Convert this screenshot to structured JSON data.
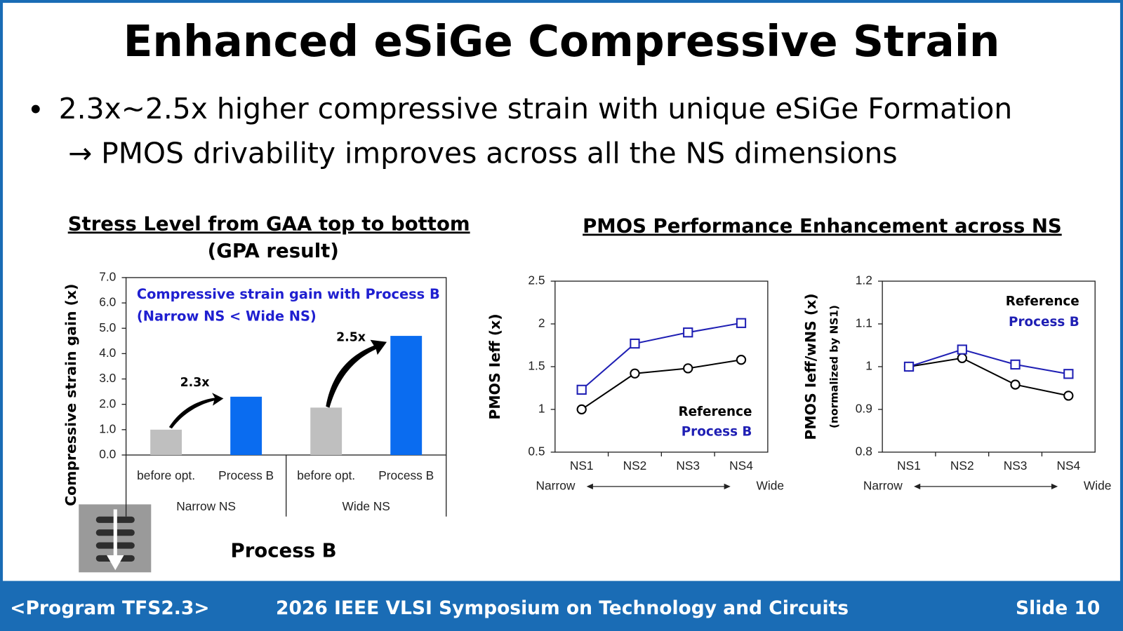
{
  "slide": {
    "title": "Enhanced eSiGe Compressive Strain",
    "bullet": "2.3x~2.5x higher compressive strain with unique eSiGe Formation",
    "sub_bullet": "→ PMOS drivability improves across all the NS dimensions",
    "right_panel_title": "PMOS Performance Enhancement across NS",
    "image_caption": "Process B"
  },
  "footer": {
    "program": "<Program TFS2.3>",
    "conference": "2026 IEEE VLSI Symposium on Technology and Circuits",
    "slide_number": "Slide 10"
  },
  "chart_data": [
    {
      "type": "bar",
      "title": "Stress Level from GAA top to bottom",
      "subtitle": "(GPA result)",
      "ylabel": "Compressive strain gain (x)",
      "categories": [
        "before opt.",
        "Process B",
        "before opt.",
        "Process B"
      ],
      "group_labels": [
        "Narrow NS",
        "Wide NS"
      ],
      "values": [
        1.0,
        2.3,
        1.87,
        4.7
      ],
      "colors": [
        "#bfbfbf",
        "#0a6cf0",
        "#bfbfbf",
        "#0a6cf0"
      ],
      "ylim": [
        0,
        7
      ],
      "yticks": [
        {
          "value": 0,
          "label": "0.0"
        },
        {
          "value": 1,
          "label": "1.0"
        },
        {
          "value": 2,
          "label": "2.0"
        },
        {
          "value": 3,
          "label": "3.0"
        },
        {
          "value": 4,
          "label": "4.0"
        },
        {
          "value": 5,
          "label": "5.0"
        },
        {
          "value": 6,
          "label": "6.0"
        },
        {
          "value": 7,
          "label": "7.0"
        }
      ],
      "annotations": [
        "Compressive strain gain with Process B",
        "(Narrow NS < Wide NS)",
        "2.3x",
        "2.5x"
      ],
      "grid": false
    },
    {
      "type": "line",
      "ylabel": "PMOS Ieff (x)",
      "categories": [
        "NS1",
        "NS2",
        "NS3",
        "NS4"
      ],
      "x_range_labels": [
        "Narrow",
        "Wide"
      ],
      "series": [
        {
          "name": "Reference",
          "color": "#000000",
          "marker": "circle",
          "values": [
            1.0,
            1.42,
            1.48,
            1.58
          ]
        },
        {
          "name": "Process B",
          "color": "#1f1fb4",
          "marker": "square",
          "values": [
            1.23,
            1.77,
            1.9,
            2.01
          ]
        }
      ],
      "ylim": [
        0.5,
        2.5
      ],
      "yticks": [
        0.5,
        1,
        1.5,
        2,
        2.5
      ],
      "legend": "lower right",
      "grid": false
    },
    {
      "type": "line",
      "ylabel": "PMOS Ieff/wNS (x)",
      "ylabel_note": "(normalized by NS1)",
      "categories": [
        "NS1",
        "NS2",
        "NS3",
        "NS4"
      ],
      "x_range_labels": [
        "Narrow",
        "Wide"
      ],
      "series": [
        {
          "name": "Reference",
          "color": "#000000",
          "marker": "circle",
          "values": [
            1.0,
            1.02,
            0.958,
            0.932
          ]
        },
        {
          "name": "Process B",
          "color": "#1f1fb4",
          "marker": "square",
          "values": [
            1.0,
            1.04,
            1.005,
            0.983
          ]
        }
      ],
      "ylim": [
        0.8,
        1.2
      ],
      "yticks": [
        0.8,
        0.9,
        1,
        1.1,
        1.2
      ],
      "legend": "upper right",
      "grid": false
    }
  ]
}
